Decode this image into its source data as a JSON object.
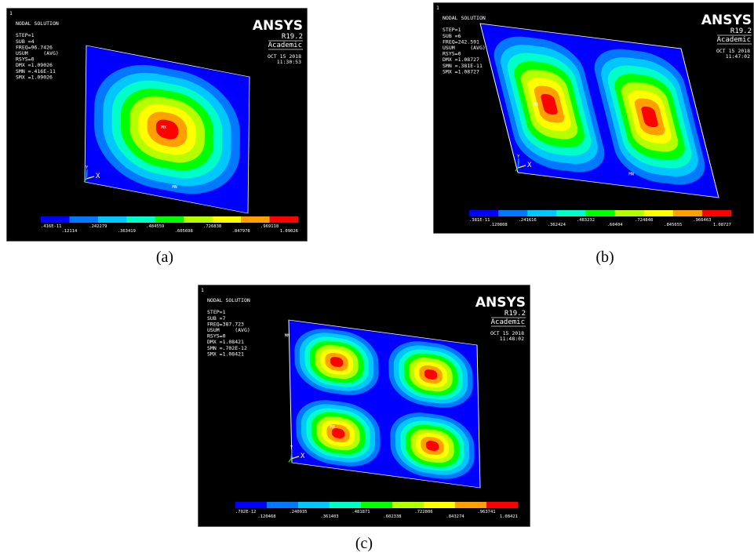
{
  "panels": [
    {
      "caption": "(a)",
      "window": "1",
      "info": [
        "NODAL SOLUTION",
        "",
        "STEP=1",
        "SUB =4",
        "FREQ=96.7426",
        "USUM     (AVG)",
        "RSYS=0",
        "DMX =1.09026",
        "SMN =.416E-11",
        "SMX =1.09026"
      ],
      "logo": "ANSYS",
      "version": "R19.2",
      "edition": "Academic",
      "date": "OCT 15 2018",
      "time": "11:30:53",
      "max_label": "MX",
      "min_label": "MN",
      "axis_x": "X",
      "axis_y": "Y",
      "legend": [
        ".416E-11",
        ".12114",
        ".242279",
        ".363419",
        ".484559",
        ".605698",
        ".726838",
        ".847978",
        ".969118",
        "1.09026"
      ]
    },
    {
      "caption": "(b)",
      "window": "1",
      "info": [
        "NODAL SOLUTION",
        "",
        "STEP=1",
        "SUB =6",
        "FREQ=242.591",
        "USUM     (AVG)",
        "RSYS=0",
        "DMX =1.08727",
        "SMN =.381E-11",
        "SMX =1.08727"
      ],
      "logo": "ANSYS",
      "version": "R19.2",
      "edition": "Academic",
      "date": "OCT 15 2018",
      "time": "11:47:02",
      "max_label": "MX",
      "min_label": "MN",
      "axis_x": "X",
      "axis_y": "Y",
      "legend": [
        ".381E-11",
        ".120808",
        ".241616",
        ".362424",
        ".483232",
        ".60404",
        ".724848",
        ".845655",
        ".966463",
        "1.08727"
      ]
    },
    {
      "caption": "(c)",
      "window": "1",
      "info": [
        "NODAL SOLUTION",
        "",
        "STEP=1",
        "SUB =7",
        "FREQ=387.723",
        "USUM     (AVG)",
        "RSYS=0",
        "DMX =1.08421",
        "SMN =.702E-12",
        "SMX =1.08421"
      ],
      "logo": "ANSYS",
      "version": "R19.2",
      "edition": "Academic",
      "date": "OCT 15 2018",
      "time": "11:48:02",
      "max_label": "MX",
      "min_label": "MN",
      "axis_x": "X",
      "axis_y": "Y",
      "legend": [
        ".702E-12",
        ".120468",
        ".240935",
        ".361403",
        ".481871",
        ".602338",
        ".722806",
        ".843274",
        ".963741",
        "1.08421"
      ]
    }
  ]
}
